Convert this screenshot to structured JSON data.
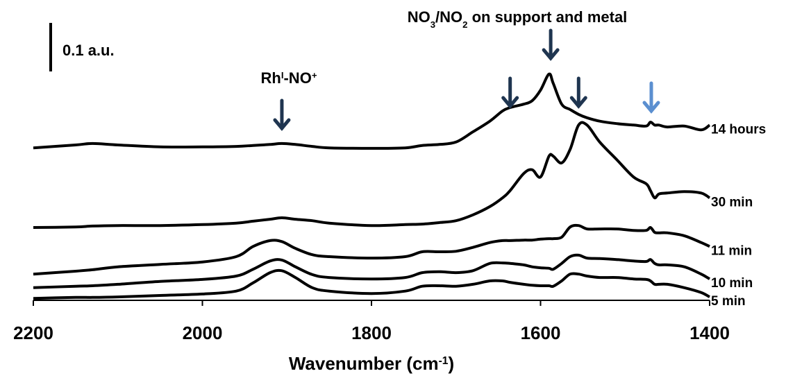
{
  "chart_data": {
    "type": "line",
    "x_label_runs": [
      {
        "text": "Wavenumber (cm"
      },
      {
        "text": "-1",
        "sup": true
      },
      {
        "text": ")"
      }
    ],
    "xlim": [
      2200,
      1400
    ],
    "xticks": [
      2200,
      2000,
      1800,
      1600,
      1400
    ],
    "ylim": [
      0,
      0.6
    ],
    "scale_bar": {
      "value": 0.1,
      "label": "0.1 a.u."
    },
    "x": [
      2200,
      2150,
      2130,
      2100,
      2050,
      2000,
      1960,
      1940,
      1920,
      1906,
      1890,
      1870,
      1850,
      1800,
      1760,
      1740,
      1720,
      1700,
      1680,
      1660,
      1645,
      1636,
      1620,
      1610,
      1600,
      1590,
      1585,
      1575,
      1565,
      1555,
      1545,
      1530,
      1510,
      1490,
      1475,
      1470,
      1465,
      1460,
      1450,
      1430,
      1410,
      1400
    ],
    "series": [
      {
        "name": "14 hours",
        "color": "#000000",
        "values": [
          0.314,
          0.32,
          0.323,
          0.32,
          0.316,
          0.316,
          0.317,
          0.319,
          0.321,
          0.323,
          0.321,
          0.317,
          0.314,
          0.313,
          0.314,
          0.319,
          0.321,
          0.326,
          0.347,
          0.369,
          0.39,
          0.397,
          0.404,
          0.411,
          0.433,
          0.466,
          0.447,
          0.404,
          0.393,
          0.383,
          0.376,
          0.369,
          0.364,
          0.361,
          0.359,
          0.367,
          0.361,
          0.361,
          0.357,
          0.359,
          0.351,
          0.361
        ]
      },
      {
        "name": "30 min",
        "color": "#000000",
        "values": [
          0.15,
          0.151,
          0.153,
          0.154,
          0.154,
          0.156,
          0.159,
          0.163,
          0.167,
          0.17,
          0.167,
          0.164,
          0.159,
          0.154,
          0.156,
          0.157,
          0.16,
          0.164,
          0.176,
          0.193,
          0.211,
          0.226,
          0.261,
          0.269,
          0.254,
          0.297,
          0.297,
          0.283,
          0.311,
          0.361,
          0.361,
          0.326,
          0.29,
          0.254,
          0.24,
          0.226,
          0.211,
          0.219,
          0.221,
          0.224,
          0.221,
          0.211
        ]
      },
      {
        "name": "11 min",
        "color": "#000000",
        "values": [
          0.054,
          0.06,
          0.063,
          0.069,
          0.074,
          0.079,
          0.09,
          0.111,
          0.123,
          0.121,
          0.107,
          0.094,
          0.09,
          0.087,
          0.09,
          0.1,
          0.1,
          0.101,
          0.109,
          0.119,
          0.123,
          0.123,
          0.124,
          0.124,
          0.126,
          0.127,
          0.127,
          0.13,
          0.151,
          0.154,
          0.147,
          0.147,
          0.147,
          0.144,
          0.144,
          0.15,
          0.14,
          0.139,
          0.139,
          0.133,
          0.119,
          0.111
        ]
      },
      {
        "name": "10 min",
        "color": "#000000",
        "values": [
          0.026,
          0.029,
          0.03,
          0.033,
          0.039,
          0.043,
          0.05,
          0.064,
          0.081,
          0.083,
          0.069,
          0.053,
          0.047,
          0.044,
          0.047,
          0.057,
          0.059,
          0.057,
          0.061,
          0.076,
          0.077,
          0.076,
          0.073,
          0.069,
          0.067,
          0.066,
          0.064,
          0.076,
          0.09,
          0.093,
          0.087,
          0.086,
          0.084,
          0.081,
          0.08,
          0.084,
          0.076,
          0.073,
          0.073,
          0.069,
          0.054,
          0.044
        ]
      },
      {
        "name": "5 min",
        "color": "#000000",
        "values": [
          0.004,
          0.006,
          0.006,
          0.007,
          0.01,
          0.013,
          0.019,
          0.036,
          0.057,
          0.061,
          0.047,
          0.026,
          0.019,
          0.014,
          0.019,
          0.029,
          0.03,
          0.029,
          0.033,
          0.04,
          0.04,
          0.037,
          0.033,
          0.031,
          0.03,
          0.03,
          0.029,
          0.04,
          0.054,
          0.054,
          0.05,
          0.047,
          0.047,
          0.044,
          0.043,
          0.04,
          0.033,
          0.033,
          0.033,
          0.026,
          0.016,
          0.007
        ]
      }
    ],
    "annotations": [
      {
        "runs": [
          {
            "text": "Rh"
          },
          {
            "text": "I",
            "sup": true
          },
          {
            "text": "-NO"
          },
          {
            "text": "+",
            "sup": true
          }
        ]
      },
      {
        "runs": [
          {
            "text": "NO"
          },
          {
            "text": "3",
            "sub": true
          },
          {
            "text": "/NO"
          },
          {
            "text": "2",
            "sub": true
          },
          {
            "text": " on support and metal"
          }
        ]
      }
    ],
    "arrows": [
      {
        "x": 1906,
        "color": "#1f3550"
      },
      {
        "x": 1636,
        "color": "#1f3550"
      },
      {
        "x": 1588,
        "color": "#1f3550"
      },
      {
        "x": 1555,
        "color": "#1f3550"
      },
      {
        "x": 1469,
        "color": "#5b8fd0"
      }
    ]
  }
}
